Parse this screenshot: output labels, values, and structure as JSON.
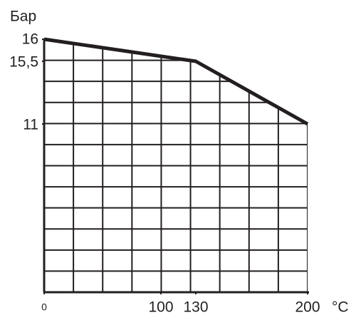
{
  "chart_data": {
    "type": "line",
    "x": [
      0,
      130,
      200
    ],
    "series": [
      {
        "name": null,
        "color": "#231f20",
        "values": [
          16,
          15.5,
          11
        ]
      }
    ],
    "xlim": [
      0,
      200
    ],
    "xticks": [
      0,
      100,
      130,
      200
    ],
    "ylim": [
      0,
      16
    ],
    "yticks": [
      11,
      {
        "value": 15.5,
        "label": "15,5"
      },
      16
    ],
    "ylabel": "Бар",
    "xlabel": "°C",
    "grid": true
  }
}
